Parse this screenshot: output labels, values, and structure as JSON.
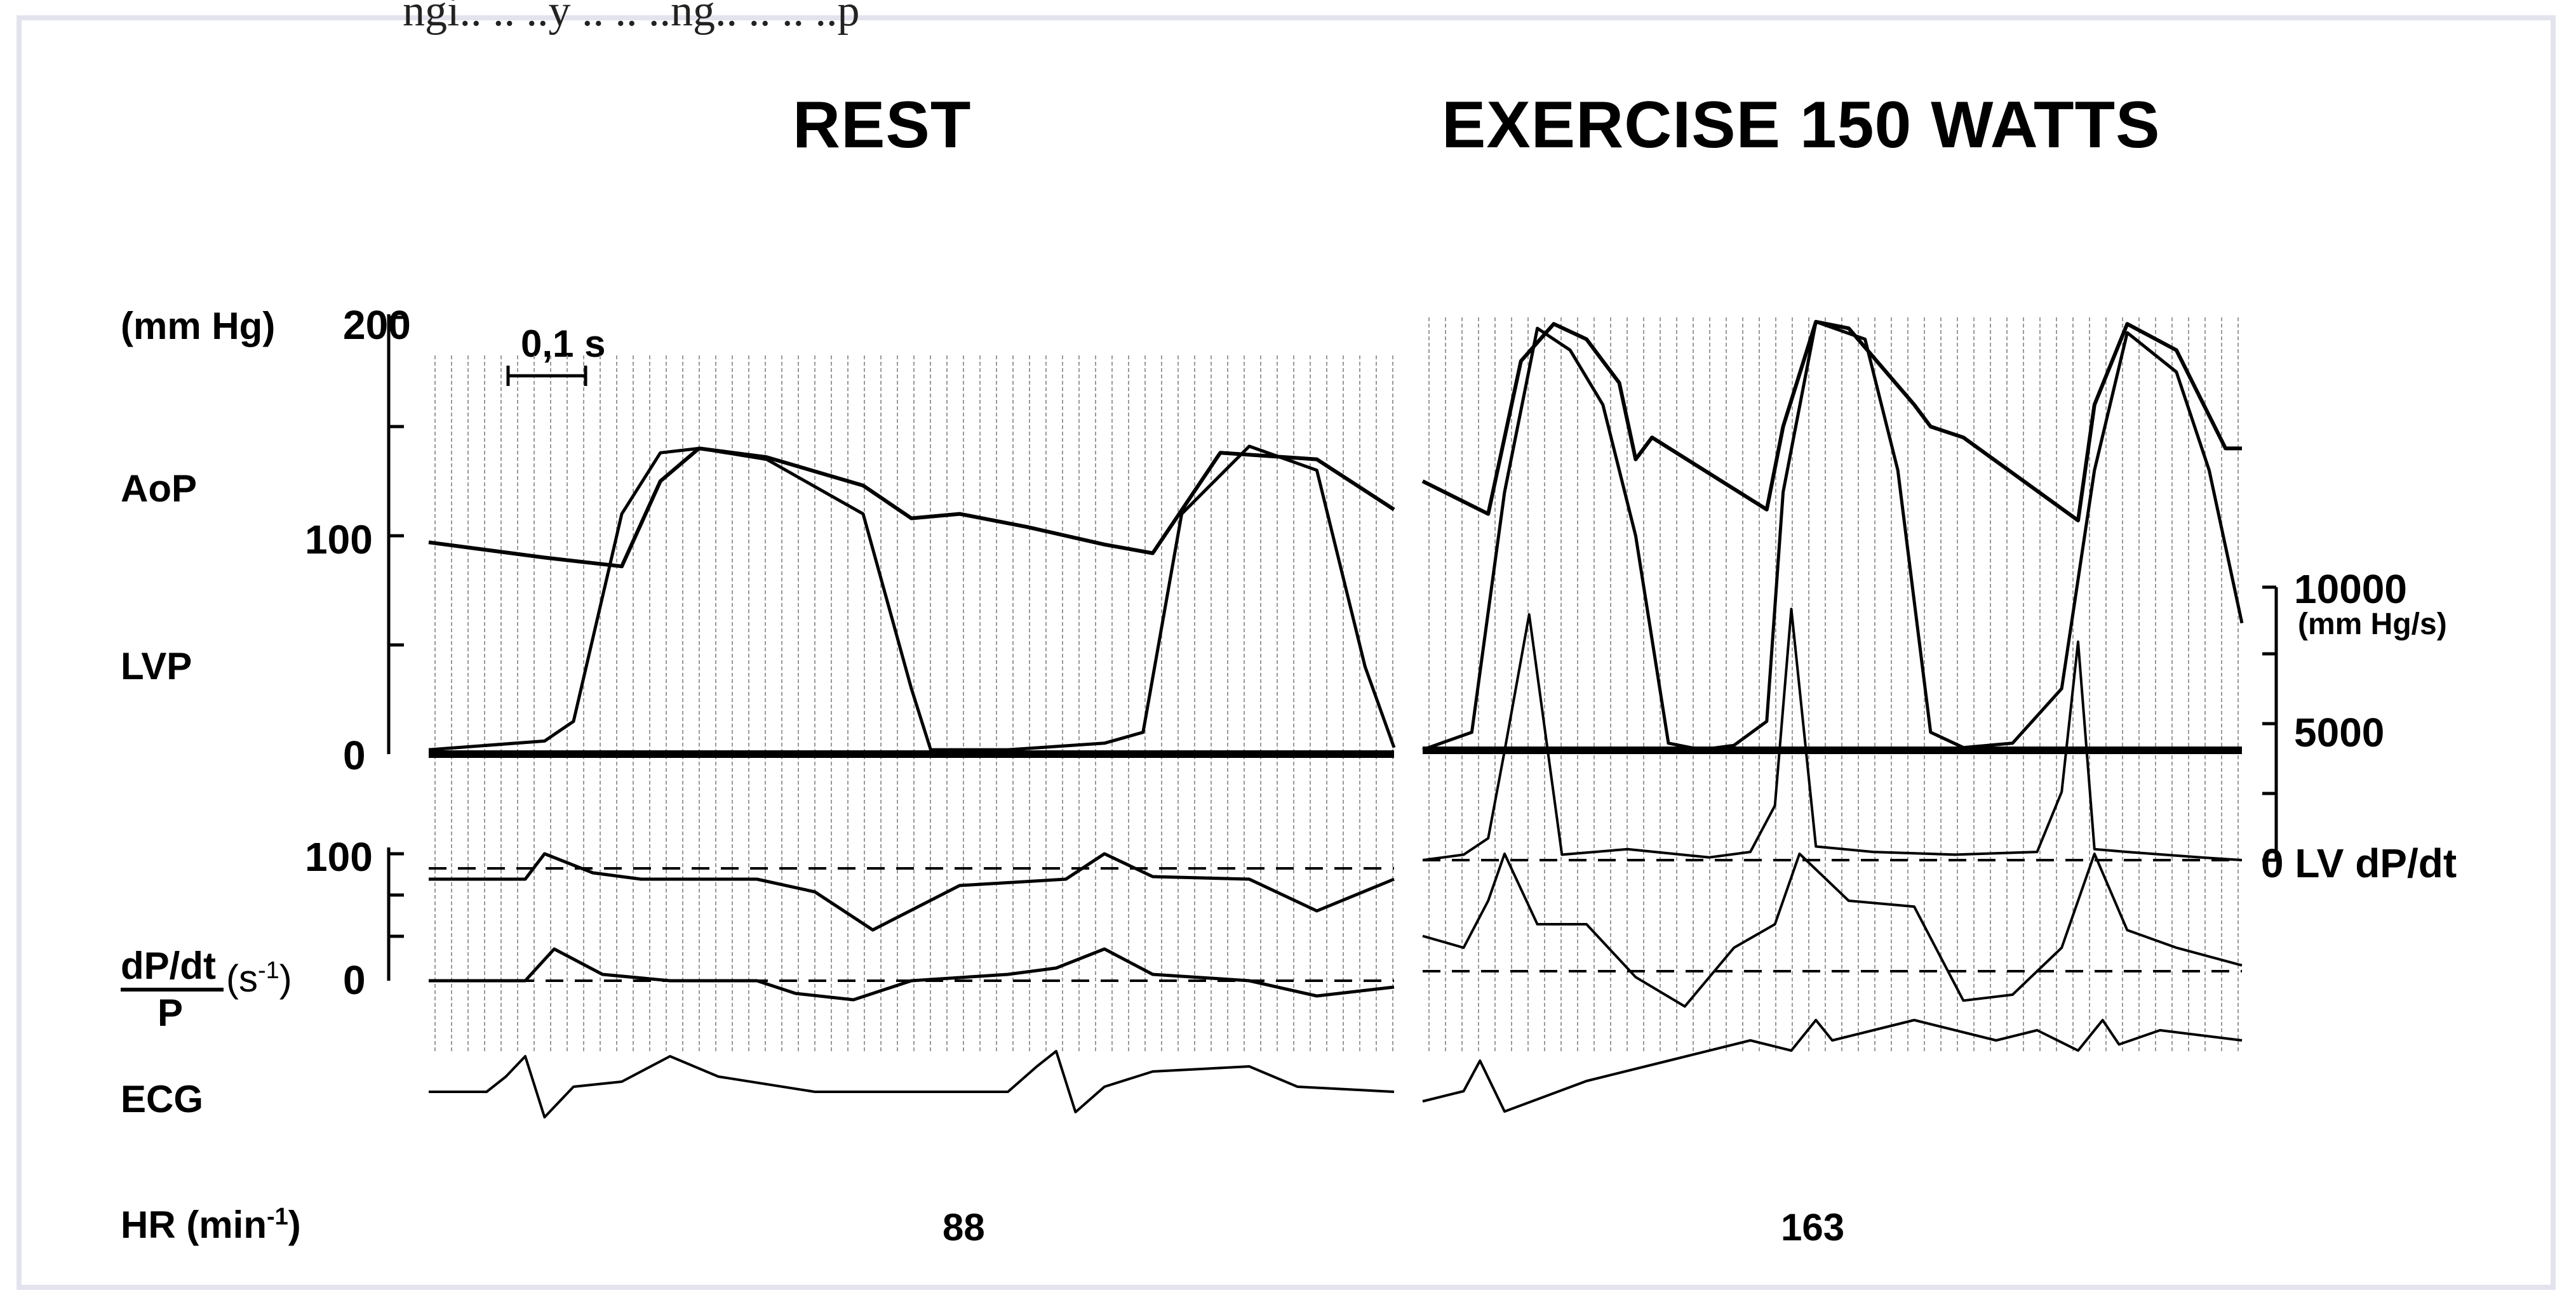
{
  "header_fragment": "ngi.. .. ..y .. .. ..ng.. .. .. ..p",
  "chart_data": [
    {
      "type": "line",
      "title": "REST",
      "panel": "rest",
      "ylabel_unit": "(mm Hg)",
      "channels": [
        "AoP",
        "LVP",
        "dP/dt/P",
        "ECG"
      ],
      "yticks_pressure": [
        0,
        100,
        200
      ],
      "yticks_dpdtp": [
        0,
        100
      ],
      "scale_bar": "0,1 s",
      "hr_label": "88",
      "series": [
        {
          "name": "AoP",
          "t": [
            0,
            0.12,
            0.2,
            0.24,
            0.28,
            0.35,
            0.45,
            0.5,
            0.55,
            0.62,
            0.7,
            0.75,
            0.82,
            0.92,
            1.0
          ],
          "values": [
            97,
            90,
            86,
            125,
            140,
            136,
            123,
            108,
            110,
            104,
            96,
            92,
            138,
            135,
            112
          ]
        },
        {
          "name": "LVP",
          "t": [
            0,
            0.12,
            0.15,
            0.2,
            0.24,
            0.28,
            0.35,
            0.45,
            0.5,
            0.52,
            0.6,
            0.7,
            0.74,
            0.78,
            0.85,
            0.92,
            0.97,
            1.0
          ],
          "values": [
            2,
            6,
            15,
            110,
            138,
            140,
            135,
            110,
            30,
            2,
            2,
            5,
            10,
            110,
            141,
            130,
            40,
            3
          ]
        },
        {
          "name": "dP/dt/P upper",
          "t": [
            0,
            0.1,
            0.12,
            0.17,
            0.22,
            0.3,
            0.34,
            0.4,
            0.46,
            0.55,
            0.66,
            0.7,
            0.75,
            0.85,
            0.92,
            1.0
          ],
          "values": [
            80,
            80,
            100,
            85,
            80,
            80,
            80,
            70,
            40,
            75,
            80,
            100,
            82,
            80,
            55,
            80
          ]
        },
        {
          "name": "dP/dt/P lower",
          "t": [
            0,
            0.1,
            0.13,
            0.18,
            0.25,
            0.34,
            0.38,
            0.44,
            0.5,
            0.6,
            0.65,
            0.7,
            0.75,
            0.85,
            0.92,
            1.0
          ],
          "values": [
            0,
            0,
            25,
            5,
            0,
            0,
            -10,
            -15,
            0,
            5,
            10,
            25,
            5,
            0,
            -12,
            -5
          ]
        },
        {
          "name": "ECG",
          "t": [
            0,
            0.06,
            0.08,
            0.1,
            0.12,
            0.15,
            0.2,
            0.25,
            0.3,
            0.4,
            0.5,
            0.6,
            0.63,
            0.65,
            0.67,
            0.7,
            0.75,
            0.85,
            0.9,
            1.0
          ],
          "values": [
            0,
            0,
            6,
            14,
            -10,
            2,
            4,
            14,
            6,
            0,
            0,
            0,
            10,
            16,
            -8,
            2,
            8,
            10,
            2,
            0
          ]
        }
      ]
    },
    {
      "type": "line",
      "title": "EXERCISE 150 WATTS",
      "panel": "exercise",
      "ylabel_right": [
        "10000",
        "(mm Hg/s)",
        "5000",
        "0 LV dP/dt"
      ],
      "yticks_dpdt": [
        0,
        5000,
        10000
      ],
      "hr_label": "163",
      "series": [
        {
          "name": "AoP",
          "t": [
            0,
            0.08,
            0.12,
            0.16,
            0.2,
            0.24,
            0.26,
            0.28,
            0.42,
            0.44,
            0.48,
            0.52,
            0.6,
            0.62,
            0.66,
            0.8,
            0.82,
            0.86,
            0.92,
            0.98,
            1.0
          ],
          "values": [
            125,
            110,
            180,
            197,
            190,
            170,
            135,
            145,
            112,
            150,
            198,
            195,
            160,
            150,
            145,
            107,
            160,
            197,
            185,
            140,
            140
          ]
        },
        {
          "name": "LVP",
          "t": [
            0,
            0.06,
            0.1,
            0.14,
            0.18,
            0.22,
            0.26,
            0.3,
            0.34,
            0.38,
            0.42,
            0.44,
            0.48,
            0.54,
            0.58,
            0.62,
            0.66,
            0.72,
            0.78,
            0.82,
            0.86,
            0.92,
            0.96,
            1.0
          ],
          "values": [
            2,
            10,
            120,
            195,
            185,
            160,
            100,
            5,
            2,
            4,
            15,
            120,
            198,
            190,
            130,
            10,
            3,
            5,
            30,
            130,
            193,
            175,
            130,
            60
          ]
        },
        {
          "name": "LV dP/dt",
          "t": [
            0,
            0.05,
            0.08,
            0.1,
            0.13,
            0.17,
            0.25,
            0.35,
            0.4,
            0.43,
            0.45,
            0.48,
            0.55,
            0.65,
            0.75,
            0.78,
            0.8,
            0.82,
            0.86,
            0.95,
            1.0
          ],
          "values": [
            0,
            200,
            800,
            4000,
            9000,
            200,
            400,
            100,
            300,
            2000,
            9200,
            500,
            300,
            200,
            300,
            2500,
            8000,
            400,
            300,
            100,
            0
          ]
        },
        {
          "name": "dP/dt/P",
          "t": [
            0,
            0.05,
            0.08,
            0.1,
            0.14,
            0.2,
            0.26,
            0.32,
            0.38,
            0.43,
            0.46,
            0.52,
            0.6,
            0.66,
            0.72,
            0.78,
            0.82,
            0.86,
            0.92,
            1.0
          ],
          "values": [
            30,
            20,
            60,
            100,
            40,
            40,
            -5,
            -30,
            20,
            40,
            100,
            60,
            55,
            -25,
            -20,
            20,
            100,
            35,
            20,
            5
          ]
        },
        {
          "name": "ECG",
          "t": [
            0,
            0.05,
            0.07,
            0.1,
            0.2,
            0.3,
            0.4,
            0.45,
            0.48,
            0.5,
            0.55,
            0.6,
            0.7,
            0.75,
            0.8,
            0.83,
            0.85,
            0.9,
            1.0
          ],
          "values": [
            0,
            5,
            20,
            -5,
            10,
            20,
            30,
            25,
            40,
            30,
            35,
            40,
            30,
            35,
            25,
            40,
            28,
            35,
            30
          ]
        }
      ]
    }
  ]
}
